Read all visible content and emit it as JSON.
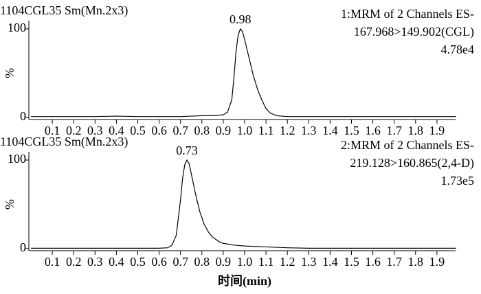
{
  "chart_data": [
    {
      "type": "line",
      "title": "1104CGL35 Sm(Mn.2x3)",
      "peak_label": "0.98",
      "info": [
        "1:MRM of 2 Channels ES-",
        "167.968>149.902(CGL)",
        "4.78e4"
      ],
      "ylabel": "%",
      "series": [
        {
          "color": "#000000",
          "x": [
            0,
            0.1,
            0.2,
            0.3,
            0.4,
            0.5,
            0.6,
            0.7,
            0.75,
            0.8,
            0.85,
            0.9,
            0.92,
            0.94,
            0.95,
            0.96,
            0.97,
            0.98,
            0.99,
            1.0,
            1.02,
            1.04,
            1.06,
            1.08,
            1.1,
            1.12,
            1.15,
            1.2,
            1.3,
            1.4,
            1.5,
            1.6,
            1.7,
            1.8,
            1.9,
            1.99
          ],
          "values": [
            1,
            1,
            1,
            1,
            1.5,
            1,
            1,
            1,
            1.5,
            2,
            2,
            3,
            6,
            20,
            45,
            75,
            93,
            100,
            97,
            88,
            68,
            48,
            32,
            20,
            10,
            5,
            2,
            1,
            1,
            1,
            1,
            1,
            1,
            1,
            1,
            1
          ]
        }
      ],
      "xlim": [
        0,
        2.0
      ],
      "ylim": [
        0,
        100
      ],
      "yticks": [
        0,
        100
      ],
      "xticks": [
        0.1,
        0.2,
        0.3,
        0.4,
        0.5,
        0.6,
        0.7,
        0.8,
        0.9,
        {
          "value": 1,
          "label": "1.0"
        },
        1.1,
        1.2,
        1.3,
        1.4,
        1.5,
        1.6,
        1.7,
        1.8,
        1.9
      ]
    },
    {
      "type": "line",
      "title": "1104CGL35 Sm(Mn.2x3)",
      "peak_label": "0.73",
      "info": [
        "2:MRM of 2 Channels ES-",
        "219.128>160.865(2,4-D)",
        "1.73e5"
      ],
      "ylabel": "%",
      "xlabel": "时间(min)",
      "series": [
        {
          "color": "#000000",
          "x": [
            0,
            0.1,
            0.2,
            0.3,
            0.4,
            0.5,
            0.6,
            0.64,
            0.66,
            0.68,
            0.7,
            0.71,
            0.72,
            0.73,
            0.74,
            0.75,
            0.77,
            0.79,
            0.81,
            0.83,
            0.85,
            0.88,
            0.9,
            0.95,
            1.0,
            1.1,
            1.2,
            1.3,
            1.4,
            1.5,
            1.6,
            1.7,
            1.8,
            1.9,
            1.99
          ],
          "values": [
            0.5,
            0.5,
            0.5,
            0.5,
            0.5,
            0.5,
            0.5,
            1,
            4,
            15,
            55,
            80,
            95,
            100,
            96,
            85,
            62,
            42,
            28,
            19,
            13,
            8,
            6,
            4,
            3,
            2,
            1,
            0.5,
            0.5,
            0.5,
            0.5,
            0.5,
            0.5,
            0.5,
            0.5
          ]
        }
      ],
      "xlim": [
        0,
        2.0
      ],
      "ylim": [
        0,
        100
      ],
      "yticks": [
        0,
        100
      ],
      "xticks": [
        0.1,
        0.2,
        0.3,
        0.4,
        0.5,
        0.6,
        0.7,
        0.8,
        0.9,
        {
          "value": 1,
          "label": "1.0"
        },
        1.1,
        1.2,
        1.3,
        1.4,
        1.5,
        1.6,
        1.7,
        1.8,
        1.9
      ]
    }
  ]
}
